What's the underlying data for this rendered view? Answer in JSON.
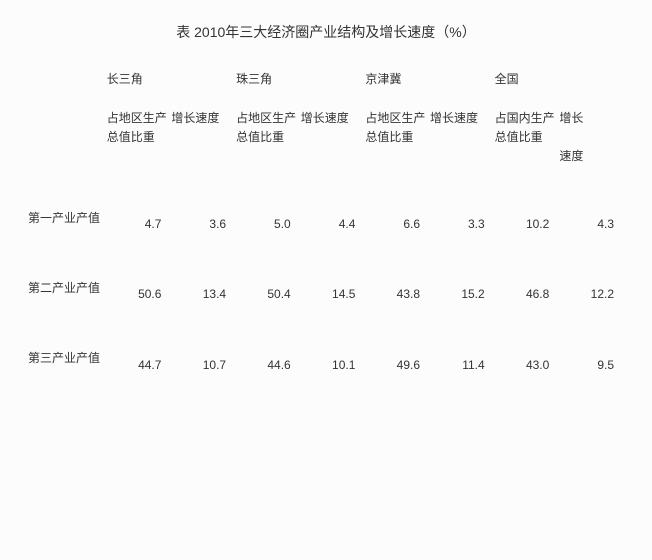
{
  "title": "表 2010年三大经济圈产业结构及增长速度（%）",
  "regions": [
    "长三角",
    "珠三角",
    "京津冀",
    "全国"
  ],
  "subheads": {
    "share_regional": "占地区生产总值比重",
    "share_national": "占国内生产总值比重",
    "growth": "增长速度",
    "growth_alt": "增长速度",
    "growth_split_top": "增长",
    "growth_split_bottom": "速度"
  },
  "rows": [
    {
      "label": "第一产业产值",
      "values": [
        "4.7",
        "3.6",
        "5.0",
        "4.4",
        "6.6",
        "3.3",
        "10.2",
        "4.3"
      ]
    },
    {
      "label": "第二产业产值",
      "values": [
        "50.6",
        "13.4",
        "50.4",
        "14.5",
        "43.8",
        "15.2",
        "46.8",
        "12.2"
      ]
    },
    {
      "label": "第三产业产值",
      "values": [
        "44.7",
        "10.7",
        "44.6",
        "10.1",
        "49.6",
        "11.4",
        "43.0",
        "9.5"
      ]
    }
  ],
  "colors": {
    "background": "#fcfcfc",
    "text": "#333333"
  },
  "font": {
    "family": "Microsoft YaHei / SimSun",
    "base_size_pt": 9,
    "title_size_pt": 10.5
  }
}
